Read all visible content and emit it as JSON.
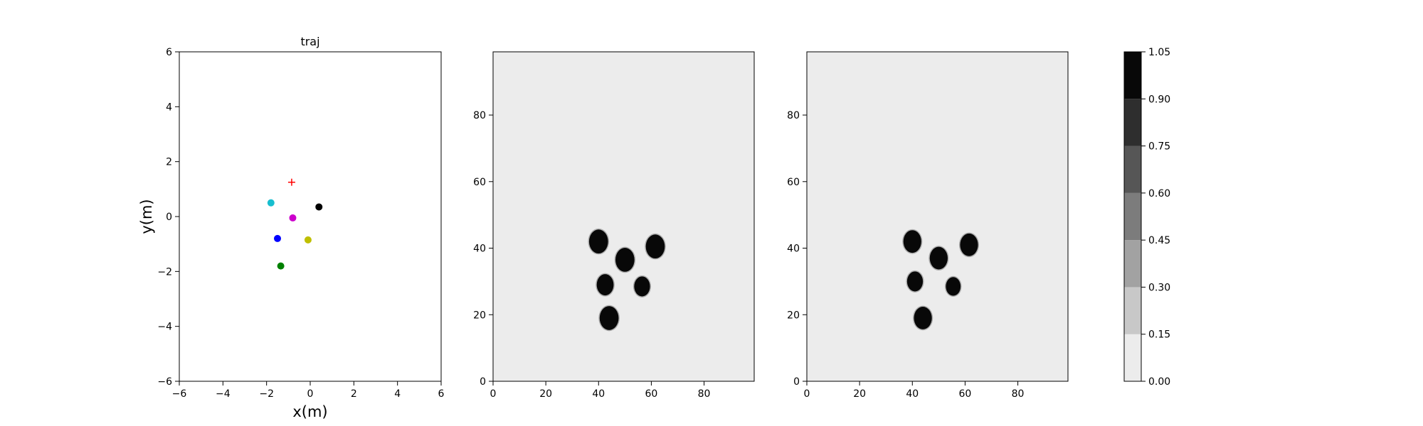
{
  "chart_data": [
    {
      "type": "scatter",
      "title": "traj",
      "xlabel": "x(m)",
      "ylabel": "y(m)",
      "xlim": [
        -6,
        6
      ],
      "ylim": [
        -6,
        6
      ],
      "xticks": [
        "−6",
        "−4",
        "−2",
        "0",
        "2",
        "4",
        "6"
      ],
      "yticks": [
        "−6",
        "−4",
        "−2",
        "0",
        "2",
        "4",
        "6"
      ],
      "points": [
        {
          "x": -1.8,
          "y": 0.5,
          "color": "#17becf",
          "marker": "circle"
        },
        {
          "x": -0.8,
          "y": -0.05,
          "color": "#cc00cc",
          "marker": "circle"
        },
        {
          "x": 0.4,
          "y": 0.35,
          "color": "#000000",
          "marker": "circle"
        },
        {
          "x": -1.5,
          "y": -0.8,
          "color": "#0000ff",
          "marker": "circle"
        },
        {
          "x": -0.1,
          "y": -0.85,
          "color": "#bfbf00",
          "marker": "circle"
        },
        {
          "x": -1.35,
          "y": -1.8,
          "color": "#008000",
          "marker": "circle"
        },
        {
          "x": -0.85,
          "y": 1.25,
          "color": "#ff0000",
          "marker": "plus"
        }
      ]
    },
    {
      "type": "heatmap",
      "xlim": [
        0,
        99
      ],
      "ylim": [
        0,
        99
      ],
      "xticks": [
        "0",
        "20",
        "40",
        "60",
        "80"
      ],
      "yticks": [
        "0",
        "20",
        "40",
        "60",
        "80"
      ],
      "background_value": 0.05,
      "blobs": [
        {
          "cx": 40,
          "cy": 42,
          "r": 3.6,
          "value": 1.0
        },
        {
          "cx": 50,
          "cy": 36.5,
          "r": 3.6,
          "value": 1.0
        },
        {
          "cx": 61.5,
          "cy": 40.5,
          "r": 3.6,
          "value": 1.0
        },
        {
          "cx": 42.5,
          "cy": 29,
          "r": 3.2,
          "value": 1.0
        },
        {
          "cx": 56.5,
          "cy": 28.5,
          "r": 3.0,
          "value": 1.0
        },
        {
          "cx": 44,
          "cy": 19,
          "r": 3.6,
          "value": 1.0
        }
      ]
    },
    {
      "type": "heatmap",
      "xlim": [
        0,
        99
      ],
      "ylim": [
        0,
        99
      ],
      "xticks": [
        "0",
        "20",
        "40",
        "60",
        "80"
      ],
      "yticks": [
        "0",
        "20",
        "40",
        "60",
        "80"
      ],
      "background_value": 0.05,
      "blobs": [
        {
          "cx": 40,
          "cy": 42,
          "r": 3.4,
          "value": 1.0
        },
        {
          "cx": 50,
          "cy": 37,
          "r": 3.4,
          "value": 1.0
        },
        {
          "cx": 61.5,
          "cy": 41,
          "r": 3.4,
          "value": 1.0
        },
        {
          "cx": 41,
          "cy": 30,
          "r": 3.0,
          "value": 0.95
        },
        {
          "cx": 55.5,
          "cy": 28.5,
          "r": 2.8,
          "value": 0.95
        },
        {
          "cx": 44,
          "cy": 19,
          "r": 3.4,
          "value": 1.0
        }
      ]
    }
  ],
  "colorbar": {
    "levels": [
      0.0,
      0.15,
      0.3,
      0.45,
      0.6,
      0.75,
      0.9,
      1.05
    ],
    "tick_labels": [
      "0.00",
      "0.15",
      "0.30",
      "0.45",
      "0.60",
      "0.75",
      "0.90",
      "1.05"
    ],
    "colors": [
      "#ececec",
      "#c8c8c8",
      "#a2a2a2",
      "#7c7c7c",
      "#565656",
      "#2e2e2e",
      "#080808"
    ]
  }
}
